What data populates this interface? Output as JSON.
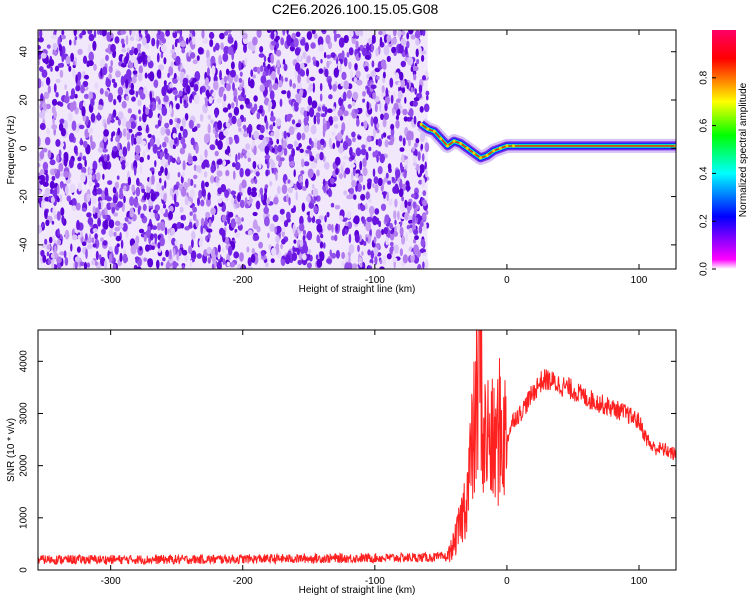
{
  "figure_title": "C2E6.2026.100.15.05.G08",
  "chart_data": [
    {
      "type": "heatmap",
      "name": "spectrogram",
      "xlabel": "Height of straight line (km)",
      "ylabel": "Frequency (Hz)",
      "xlim": [
        -355,
        128
      ],
      "ylim": [
        -50,
        49
      ],
      "xticks": [
        -300,
        -200,
        -100,
        0,
        100
      ],
      "xtick_labels": [
        "-300",
        "-200",
        "-100",
        "0",
        "100"
      ],
      "yticks": [
        -40,
        -20,
        0,
        20,
        40
      ],
      "ytick_labels": [
        "-40",
        "-20",
        "0",
        "20",
        "40"
      ],
      "noise_region_x": [
        -355,
        -60
      ],
      "signal_track": {
        "x": [
          -65,
          -60,
          -55,
          -50,
          -45,
          -40,
          -35,
          -30,
          -25,
          -20,
          -15,
          -10,
          -5,
          0,
          5,
          128
        ],
        "y": [
          10,
          8,
          7,
          4,
          1,
          3,
          2,
          0,
          -2,
          -4,
          -3,
          -1,
          0,
          1,
          1,
          1
        ]
      },
      "colorbar": {
        "label": "Normalized spectral amplitude",
        "range": [
          0,
          1
        ],
        "ticks": [
          0.0,
          0.2,
          0.4,
          0.6,
          0.8
        ],
        "tick_labels": [
          "0.0",
          "0.2",
          "0.4",
          "0.6",
          "0.8"
        ],
        "colormap": "hsv",
        "colors": [
          "#ffffff",
          "#ff00ff",
          "#0000ff",
          "#00ffff",
          "#00ff00",
          "#ffff00",
          "#ff0000",
          "#ff0066"
        ]
      }
    },
    {
      "type": "line",
      "name": "snr",
      "xlabel": "Height of straight line (km)",
      "ylabel": "SNR (10 * v/v)",
      "xlim": [
        -355,
        128
      ],
      "ylim": [
        0,
        4600
      ],
      "xticks": [
        -300,
        -200,
        -100,
        0,
        100
      ],
      "xtick_labels": [
        "-300",
        "-200",
        "-100",
        "0",
        "100"
      ],
      "yticks": [
        0,
        1000,
        2000,
        3000,
        4000
      ],
      "ytick_labels": [
        "0",
        "1000",
        "2000",
        "3000",
        "4000"
      ],
      "line_color": "#ff2020",
      "series": [
        {
          "name": "SNR",
          "x": [
            -355,
            -300,
            -250,
            -200,
            -150,
            -100,
            -60,
            -45,
            -40,
            -35,
            -30,
            -25,
            -22,
            -20,
            -18,
            -15,
            -10,
            -5,
            0,
            5,
            10,
            15,
            20,
            25,
            30,
            40,
            50,
            60,
            70,
            80,
            90,
            100,
            105,
            110,
            120,
            128
          ],
          "y": [
            200,
            200,
            200,
            210,
            220,
            230,
            240,
            250,
            500,
            900,
            1500,
            2600,
            3300,
            4500,
            2400,
            2600,
            2300,
            2700,
            2500,
            2900,
            3000,
            3200,
            3400,
            3600,
            3650,
            3550,
            3450,
            3300,
            3200,
            3100,
            3000,
            2850,
            2550,
            2350,
            2300,
            2200
          ]
        }
      ]
    }
  ]
}
